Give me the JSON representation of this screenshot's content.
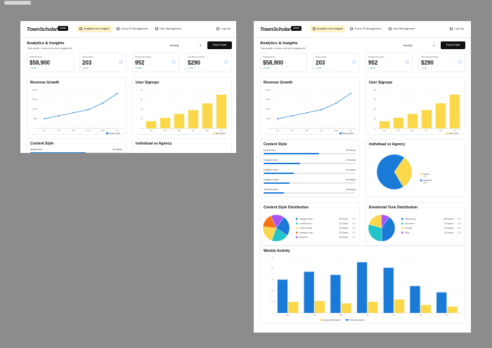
{
  "app": {
    "logo": "TownScholar",
    "badge": "Admin",
    "nav": [
      {
        "label": "Analytics and Insights",
        "active": true
      },
      {
        "label": "Group IP Management",
        "active": false
      },
      {
        "label": "User Management",
        "active": false
      }
    ],
    "logout": "Log Out"
  },
  "page": {
    "title": "Analytics & Insights",
    "subtitle": "Track growth, revenue, and user engagement",
    "period": "Monthly",
    "export": "Export Data"
  },
  "stats": [
    {
      "label": "Total Revenue",
      "value": "$58,900",
      "change": "+ 12.5%"
    },
    {
      "label": "Active Users",
      "value": "203",
      "change": "+ 8.2%"
    },
    {
      "label": "Scripts Generated",
      "value": "952",
      "change": "+ 15.8%"
    },
    {
      "label": "Avg. Revenue/User",
      "value": "$290",
      "change": "+ 4.1%"
    }
  ],
  "revenue_title": "Revenue Growth",
  "signups_title": "User Signups",
  "content_style_title": "Content Style",
  "individual_title": "Individual vs Agency",
  "distribution_title": "Content Style Distribution",
  "emotional_title": "Emotional Tone Distribution",
  "weekly_title": "Weekly Activity",
  "content_styles": [
    {
      "name": "Lipstick Post",
      "count": "55 Scripts",
      "fraction": 0.6
    },
    {
      "name": "Instagram Post",
      "count": "40 Scripts",
      "fraction": 0.4
    },
    {
      "name": "Instagram Story",
      "count": "30 Scripts",
      "fraction": 0.33
    },
    {
      "name": "Instagram Video",
      "count": "25 Scripts",
      "fraction": 0.28
    },
    {
      "name": "YouTube Script",
      "count": "20 Scripts",
      "fraction": 0.22
    }
  ],
  "colors": {
    "blue": "#1a7ad8",
    "yellow": "#fbd84a",
    "accent_bg": "#fdf4c9"
  },
  "chart_data": [
    {
      "type": "line",
      "title": "Revenue Growth",
      "x": [
        "Jan",
        "Feb",
        "Mar",
        "Apr",
        "May",
        "Jun"
      ],
      "series": [
        {
          "name": "Revenue ($)",
          "values": [
            8000,
            10500,
            13000,
            15500,
            21000,
            29000
          ]
        }
      ],
      "ylim": [
        0,
        32000
      ],
      "yticks": [
        "0",
        "8000",
        "16000",
        "24000",
        "32000"
      ]
    },
    {
      "type": "bar",
      "title": "User Signups",
      "categories": [
        "Jan",
        "Feb",
        "Mar",
        "Apr",
        "May",
        "Jun"
      ],
      "series": [
        {
          "name": "New Users",
          "values": [
            15,
            22,
            30,
            38,
            52,
            70
          ]
        }
      ],
      "ylim": [
        0,
        80
      ],
      "yticks": [
        "0",
        "20",
        "40",
        "60",
        "80"
      ]
    },
    {
      "type": "pie",
      "title": "Individual vs Agency",
      "slices": [
        {
          "label": "Agency",
          "value": 32
        },
        {
          "label": "Individual",
          "value": 68
        }
      ]
    },
    {
      "type": "pie",
      "title": "Content Style Distribution",
      "slices": [
        {
          "label": "Instagram Post",
          "count": "30 Scripts",
          "pct": "25%",
          "value": 25
        },
        {
          "label": "LinkedIn Post",
          "count": "25 Scripts",
          "pct": "21%",
          "value": 21
        },
        {
          "label": "Twitter Thread",
          "count": "25 Scripts",
          "pct": "21%",
          "value": 21
        },
        {
          "label": "Instagram Story",
          "count": "20 Scripts",
          "pct": "17%",
          "value": 17
        },
        {
          "label": "Blog Post",
          "count": "20 Scripts",
          "pct": "16%",
          "value": 16
        }
      ]
    },
    {
      "type": "pie",
      "title": "Emotional Tone Distribution",
      "slices": [
        {
          "label": "Professional",
          "count": "120 Scripts",
          "pct": "40%",
          "value": 40
        },
        {
          "label": "Informative",
          "count": "90 Scripts",
          "pct": "30%",
          "value": 30
        },
        {
          "label": "Friendly",
          "count": "60 Scripts",
          "pct": "20%",
          "value": 20
        },
        {
          "label": "Witty",
          "count": "30 Scripts",
          "pct": "10%",
          "value": 10
        }
      ]
    },
    {
      "type": "bar",
      "title": "Weekly Activity",
      "categories": [
        "Mon",
        "Tue",
        "Wed",
        "Thu",
        "Fri",
        "Sat",
        "Sun"
      ],
      "series": [
        {
          "name": "Revenue (thousand)",
          "values": [
            14,
            15,
            12,
            14,
            17,
            10,
            8
          ]
        },
        {
          "name": "Scripts Generated",
          "values": [
            42,
            52,
            48,
            64,
            57,
            34,
            26
          ]
        }
      ],
      "ylim": [
        0,
        70
      ],
      "yticks": [
        "0",
        "14",
        "28",
        "42",
        "56",
        "70"
      ]
    }
  ]
}
